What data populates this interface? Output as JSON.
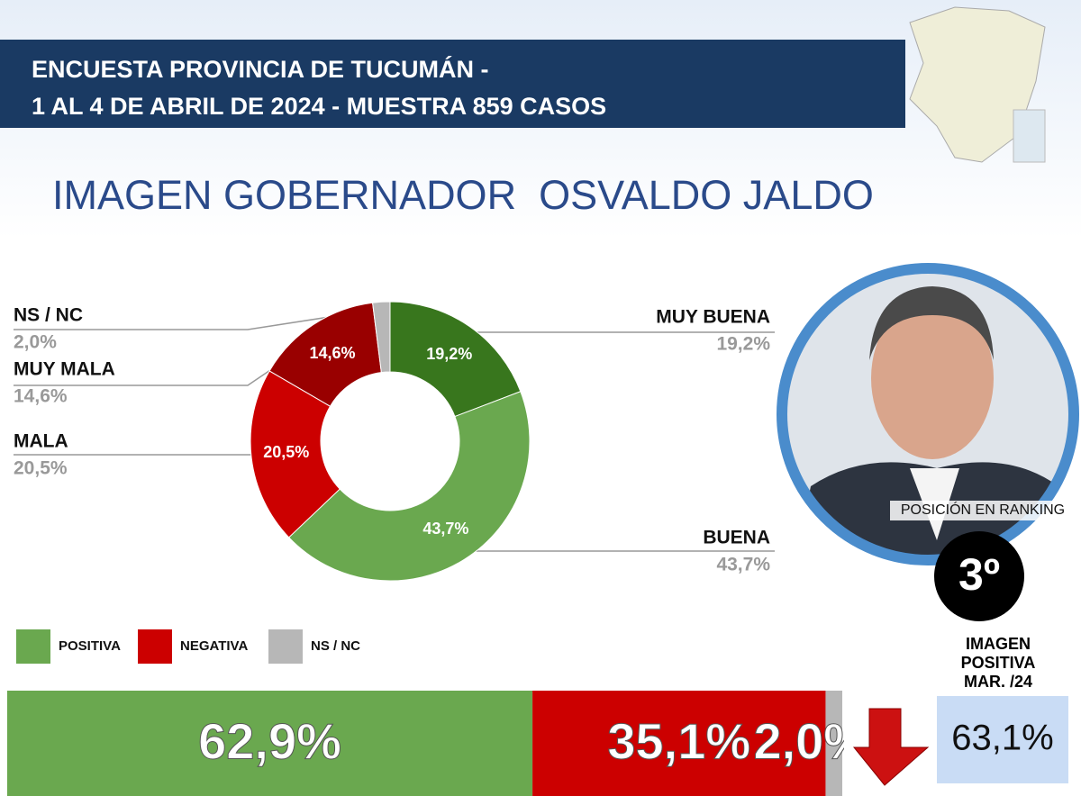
{
  "header": {
    "lines": [
      "ENCUESTA PROVINCIA DE TUCUMÁN -",
      "1 AL 4 DE ABRIL DE 2024 - MUESTRA 859 CASOS"
    ]
  },
  "title": "IMAGEN GOBERNADOR  OSVALDO JALDO",
  "chart_data": [
    {
      "type": "pie",
      "categories": [
        "MUY BUENA",
        "BUENA",
        "MALA",
        "MUY MALA",
        "NS / NC"
      ],
      "values": [
        19.2,
        43.7,
        20.5,
        14.6,
        2.0
      ],
      "value_labels": [
        "19,2%",
        "43,7%",
        "20,5%",
        "14,6%",
        "2,0%"
      ],
      "colors": [
        "#38761d",
        "#6aa84f",
        "#cc0000",
        "#990000",
        "#b7b7b7"
      ]
    },
    {
      "type": "bar",
      "orientation": "horizontal",
      "stacked": true,
      "xlim": [
        0,
        100
      ],
      "series": [
        {
          "name": "POSITIVA",
          "color": "#6aa84f",
          "values": [
            62.9
          ],
          "value_labels": [
            "62,9%"
          ]
        },
        {
          "name": "NEGATIVA",
          "color": "#cc0000",
          "values": [
            35.1
          ],
          "value_labels": [
            "35,1%"
          ]
        },
        {
          "name": "NS / NC",
          "color": "#b7b7b7",
          "values": [
            2.0
          ],
          "value_labels": [
            "2,0%"
          ]
        }
      ]
    }
  ],
  "ranking": {
    "label": "POSICIÓN EN RANKING",
    "position": "3º"
  },
  "previous": {
    "label": [
      "IMAGEN",
      "POSITIVA",
      "MAR. /24"
    ],
    "value": "63,1%"
  }
}
